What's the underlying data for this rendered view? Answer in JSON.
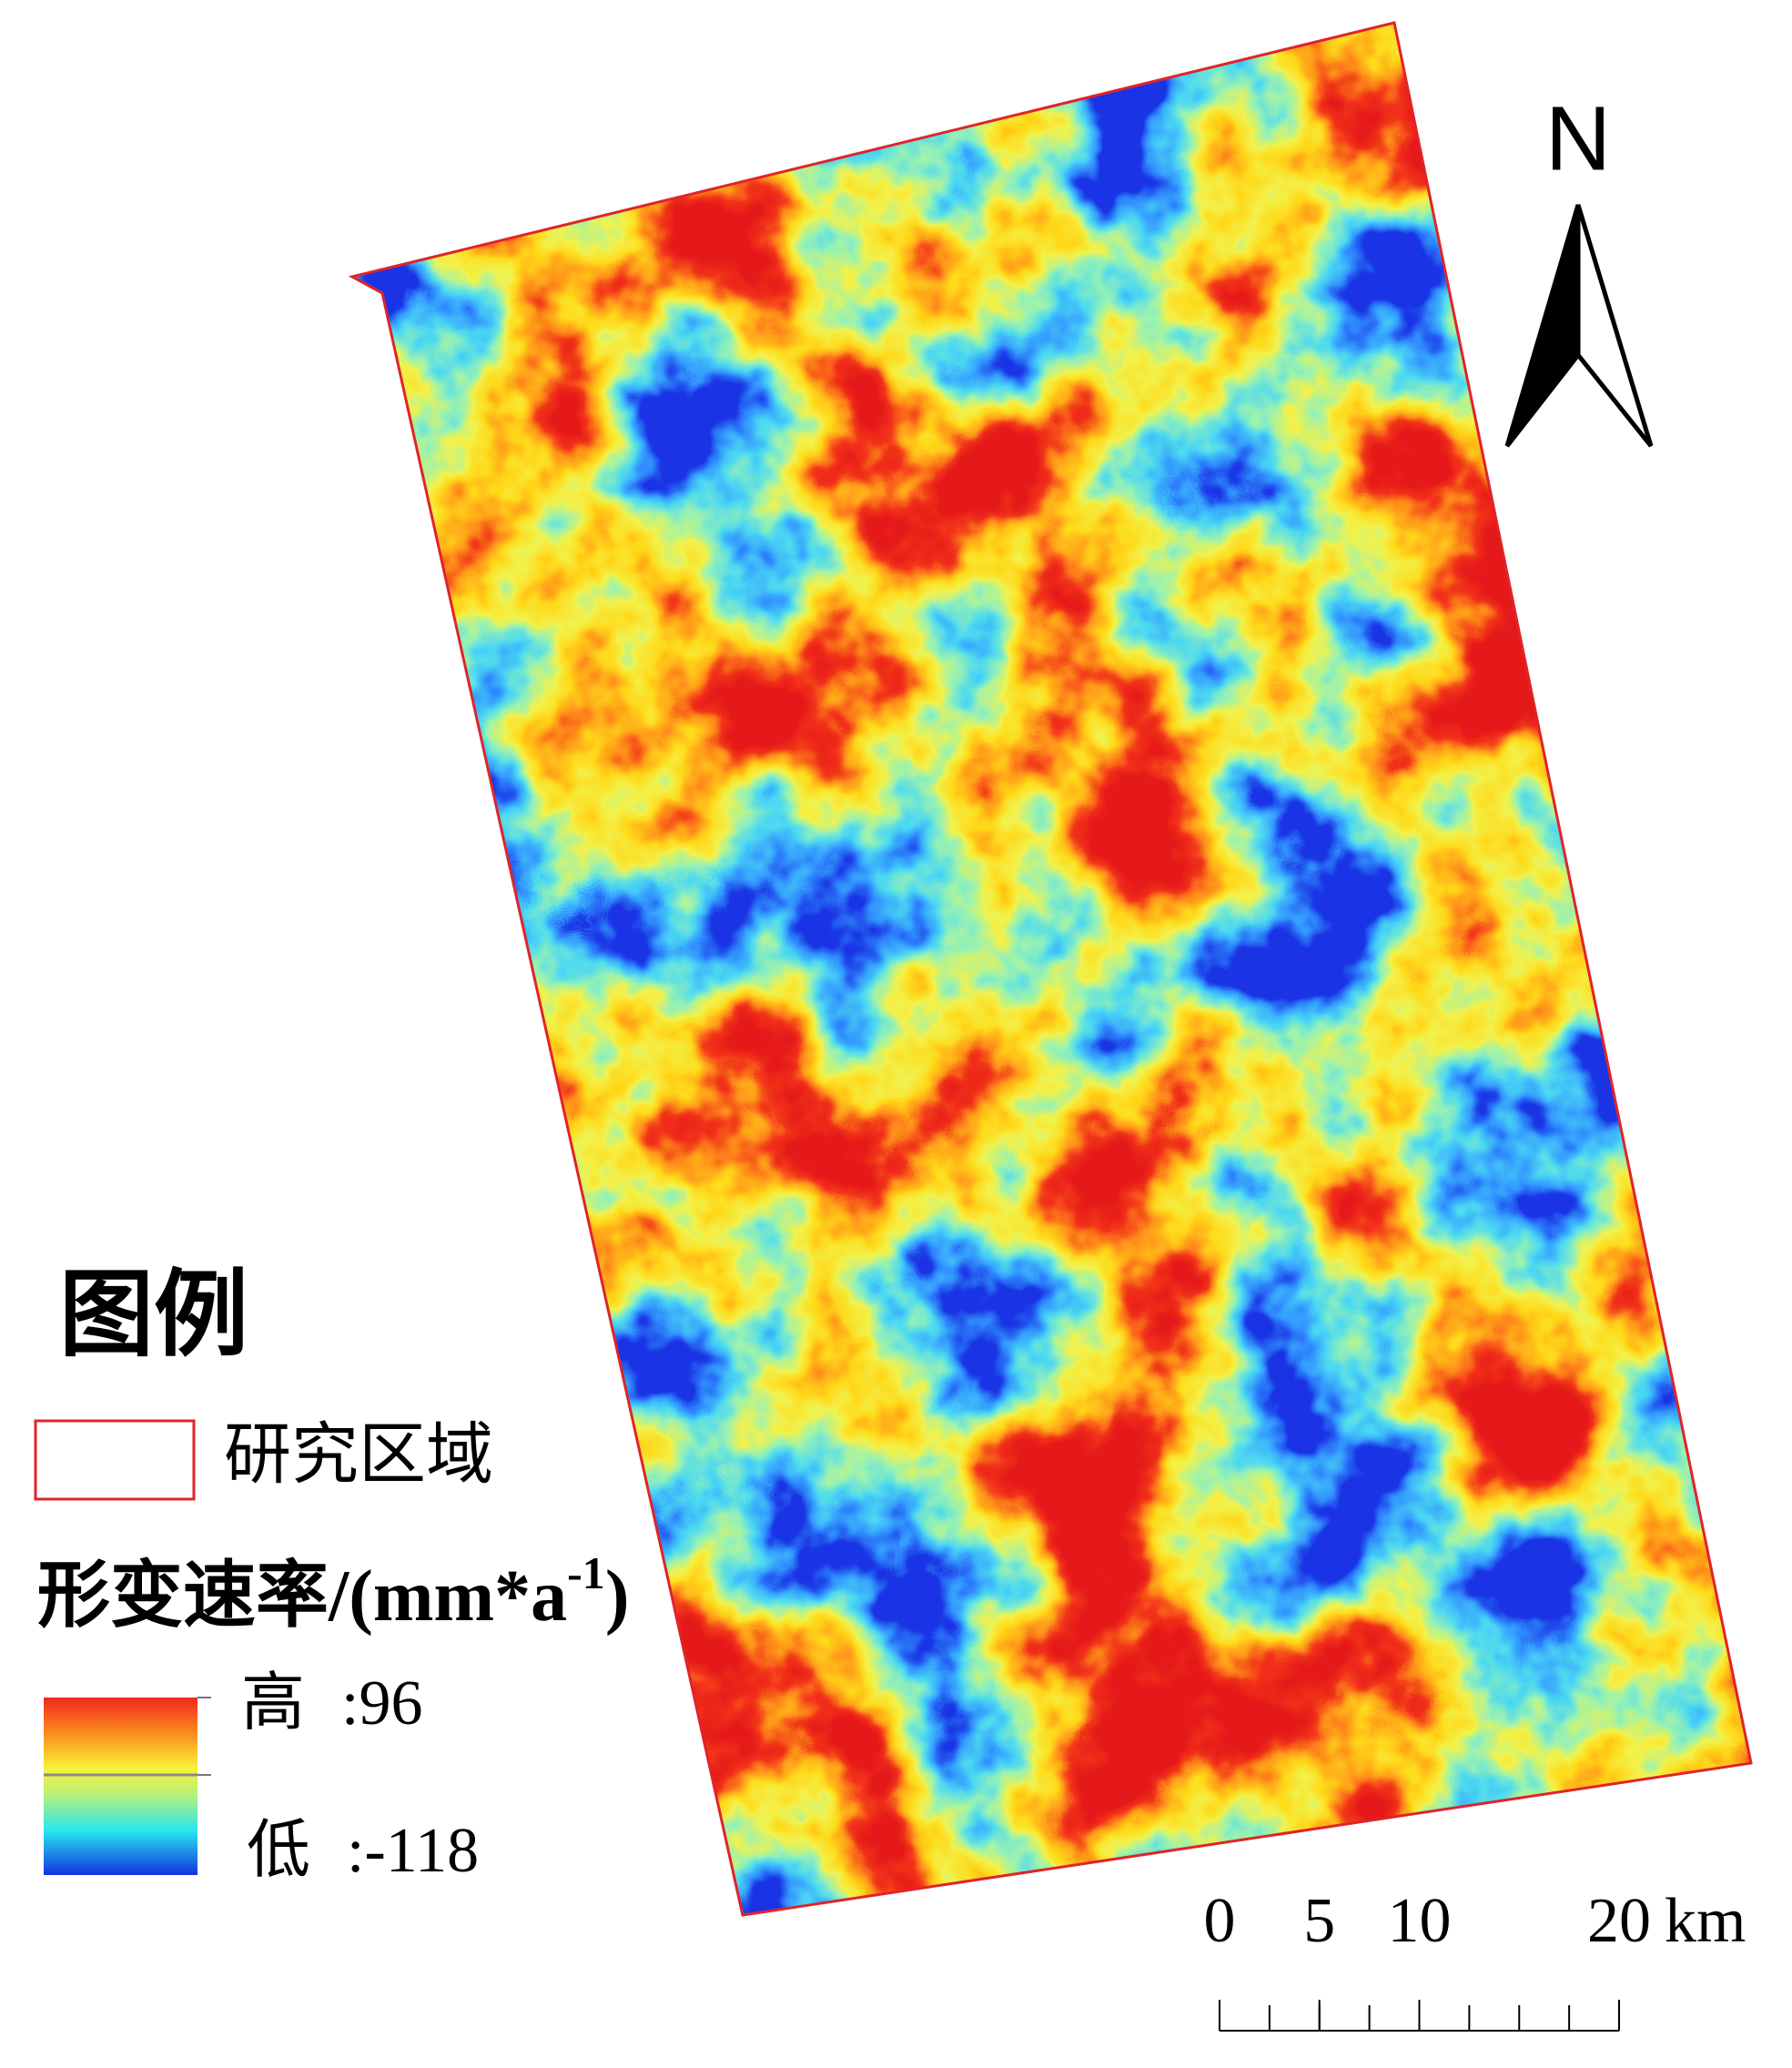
{
  "legend": {
    "title": "图例",
    "items": [
      {
        "label": "研究区域"
      }
    ],
    "ramp": {
      "title": "形变速率/(mm*a",
      "title_superscript": "-1",
      "title_close": ")",
      "high": {
        "label": "高",
        "separator": ":",
        "value": 96
      },
      "low": {
        "label": "低",
        "separator": ":",
        "value": -118
      }
    }
  },
  "north_arrow": {
    "label": "N"
  },
  "scale_bar": {
    "ticks": [
      0,
      5,
      10,
      20
    ],
    "unit": "km"
  }
}
